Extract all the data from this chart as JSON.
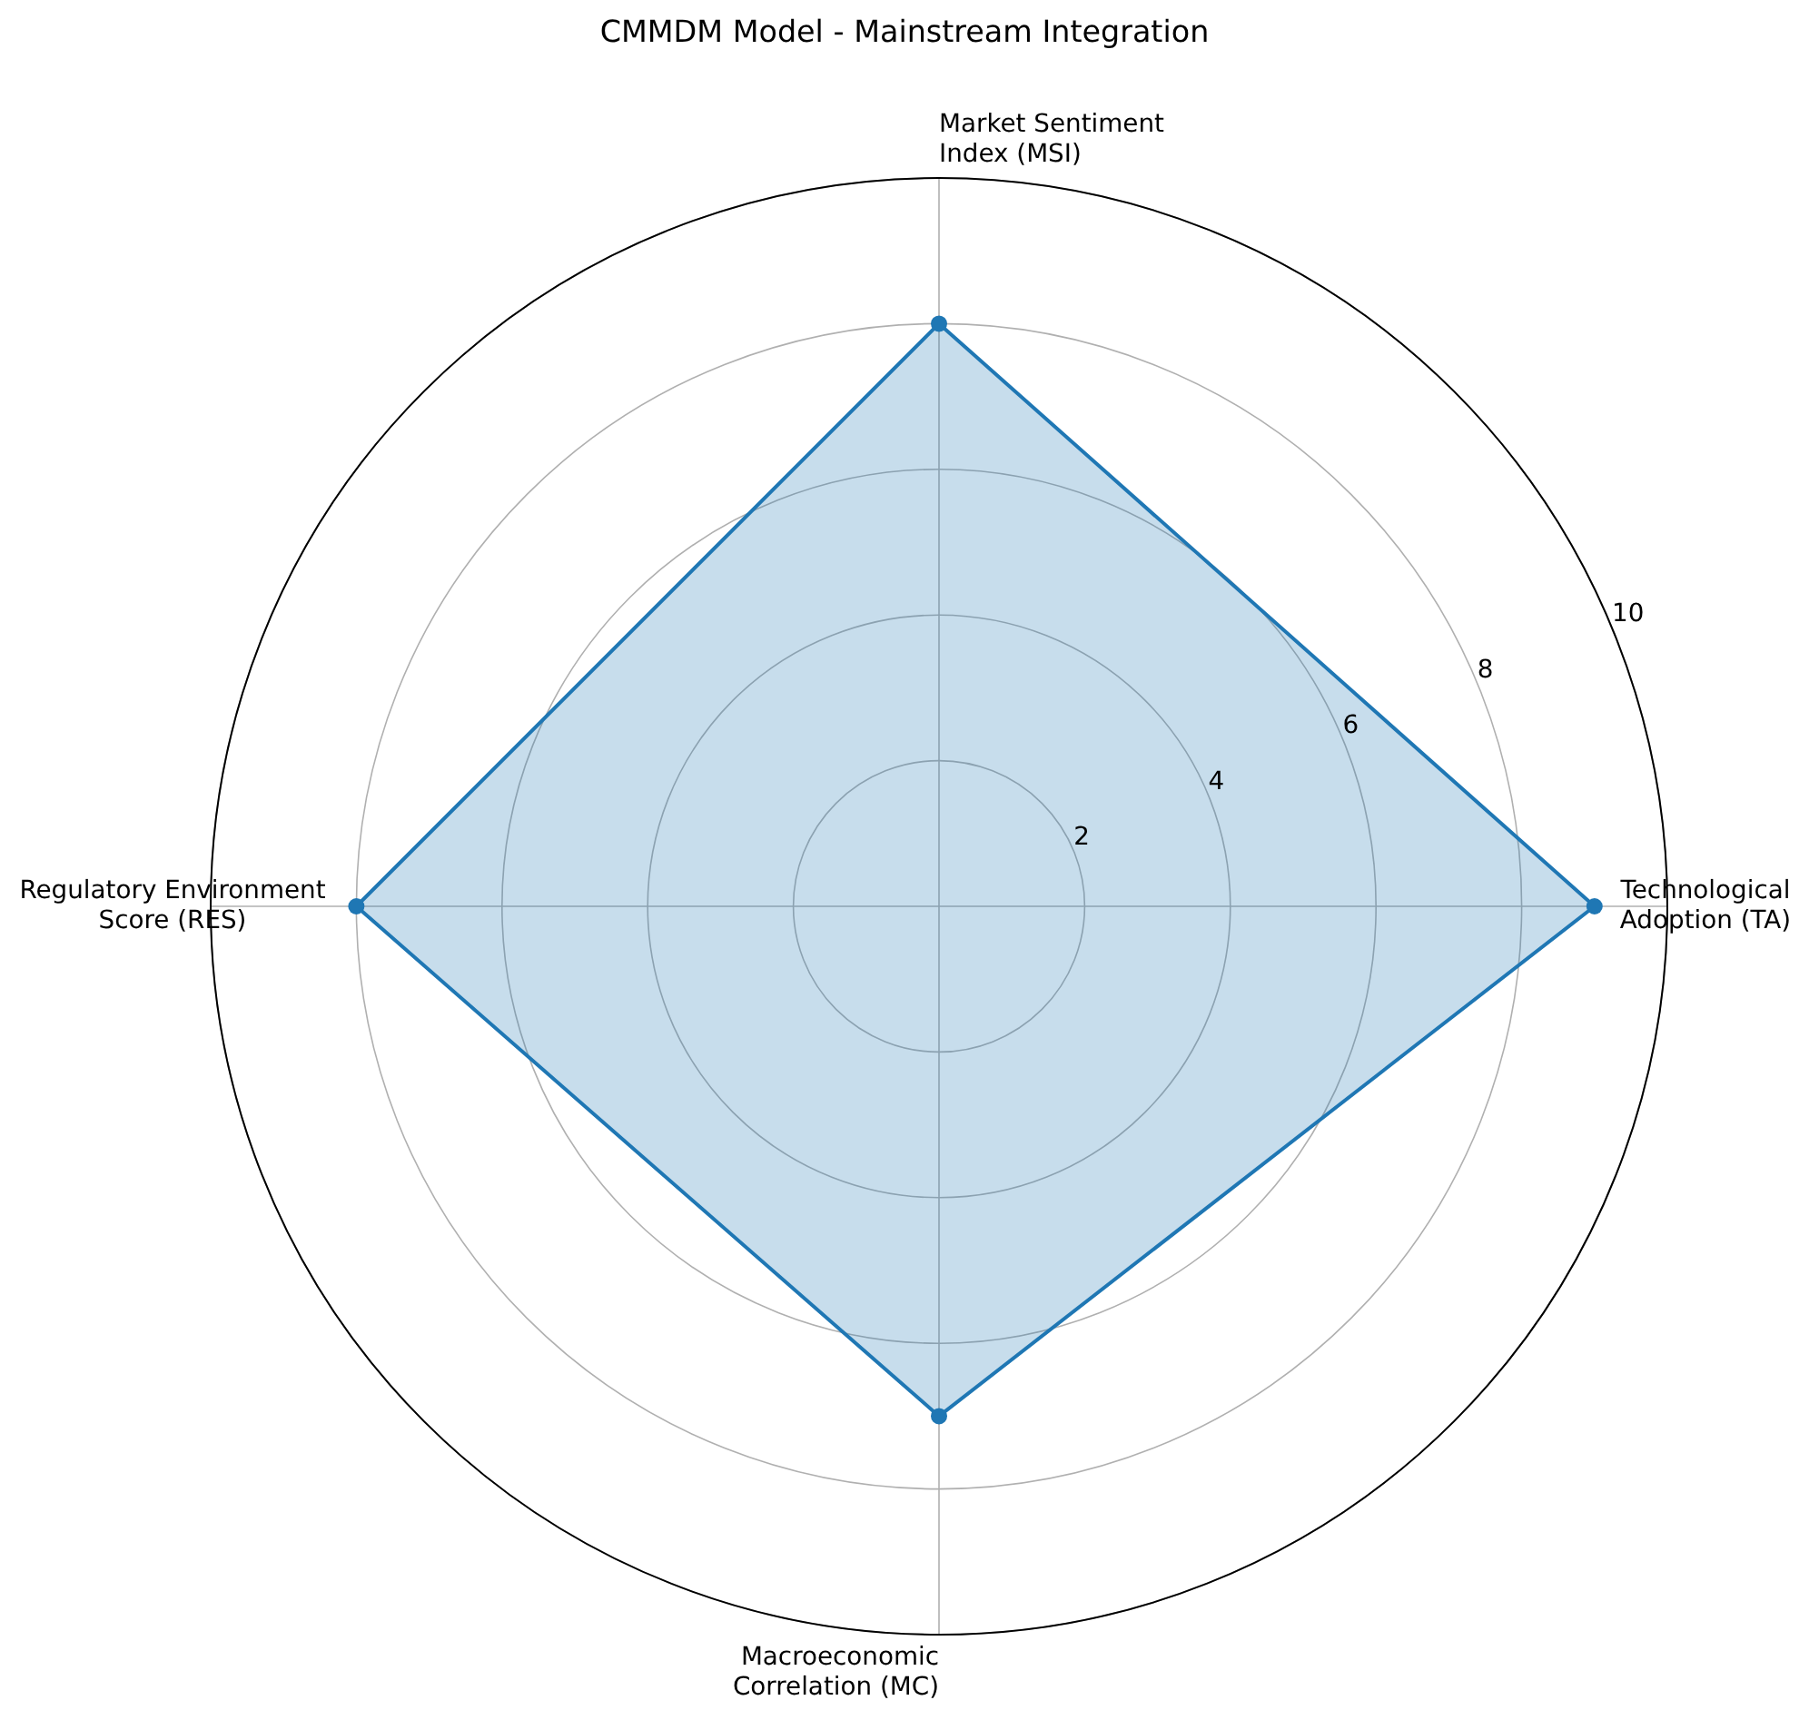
{
  "chart_data": {
    "type": "radar",
    "title": "CMMDM Model - Mainstream Integration",
    "categories": [
      "Market Sentiment\nIndex (MSI)",
      "Technological\nAdoption (TA)",
      "Macroeconomic\nCorrelation (MC)",
      "Regulatory Environment\nScore (RES)"
    ],
    "series": [
      {
        "color": "#1f77b4",
        "values": [
          8,
          9,
          7,
          8
        ]
      }
    ],
    "ylim": [
      0,
      10
    ],
    "yticks": [
      2,
      4,
      6,
      8,
      10
    ],
    "grid": true,
    "marker": "circle"
  }
}
